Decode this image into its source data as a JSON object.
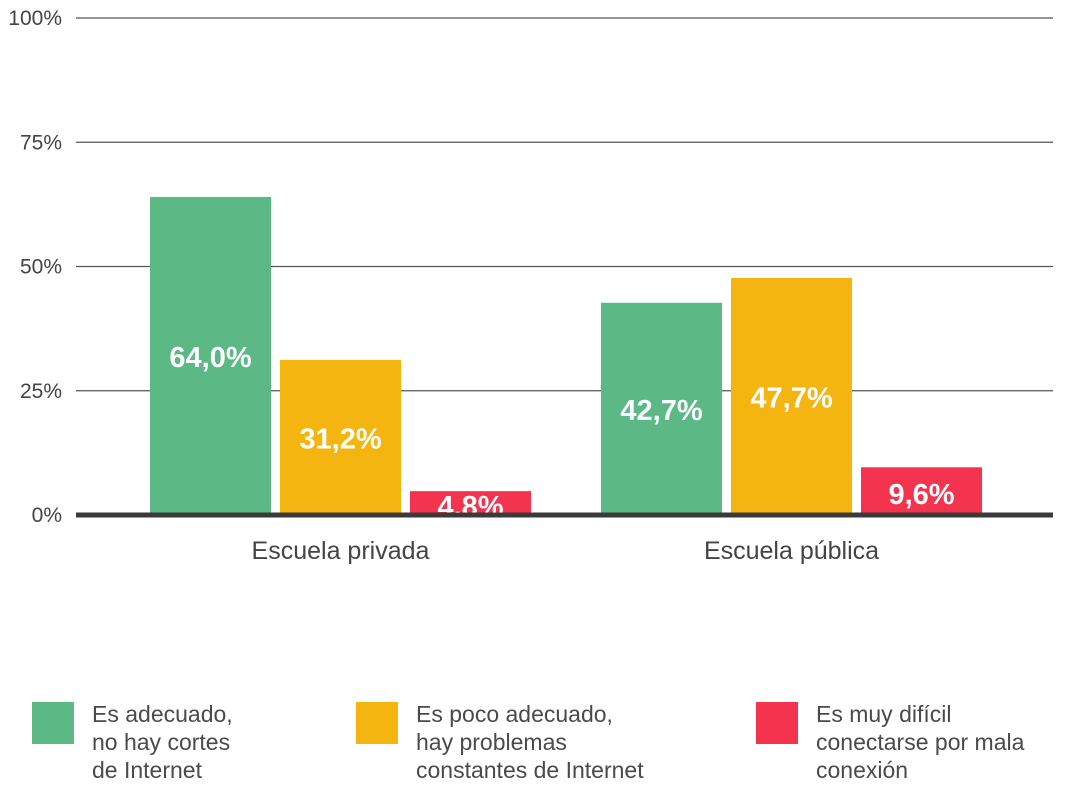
{
  "chart_data": {
    "type": "bar",
    "categories": [
      "Escuela privada",
      "Escuela pública"
    ],
    "series": [
      {
        "name": "Es adecuado,\nno hay cortes\nde Internet",
        "color": "#5cb884",
        "values": [
          64.0,
          42.7
        ],
        "labels": [
          "64,0%",
          "42,7%"
        ]
      },
      {
        "name": "Es poco adecuado,\nhay problemas\nconstantes de Internet",
        "color": "#f5b511",
        "values": [
          31.2,
          47.7
        ],
        "labels": [
          "31,2%",
          "47,7%"
        ]
      },
      {
        "name": "Es muy difícil\nconectarse por mala\nconexión",
        "color": "#f4344f",
        "values": [
          4.8,
          9.6
        ],
        "labels": [
          "4,8%",
          "9,6%"
        ]
      }
    ],
    "yticks": [
      {
        "value": 0,
        "label": "0%"
      },
      {
        "value": 25,
        "label": "25%"
      },
      {
        "value": 50,
        "label": "50%"
      },
      {
        "value": 75,
        "label": "75%"
      },
      {
        "value": 100,
        "label": "100%"
      }
    ],
    "ylim": [
      0,
      100
    ],
    "grid": true,
    "legend_position": "bottom"
  }
}
